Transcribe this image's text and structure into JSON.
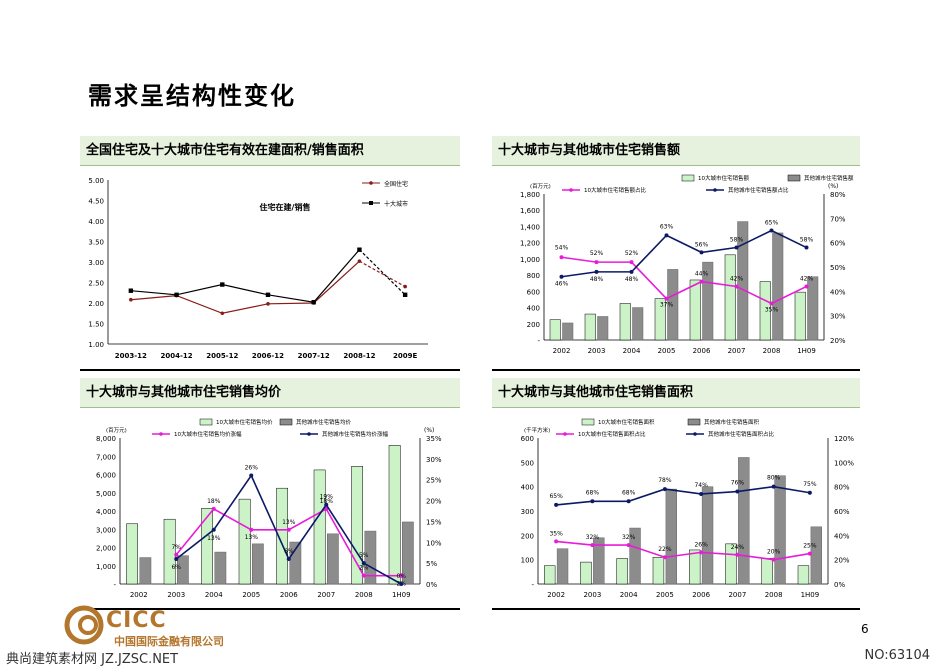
{
  "page": {
    "title": "需求呈结构性变化",
    "page_number": "6",
    "footer_left": "典尚建筑素材网 JZ.JZSC.NET",
    "footer_right": "NO:63104",
    "logo_text": "CICC",
    "logo_sub": "中国国际金融有限公司"
  },
  "colors": {
    "header_bg": "#e6f2de",
    "bar_green": "#ccf2c8",
    "bar_gray": "#8c8c8c",
    "line_magenta": "#e81bd9",
    "line_navy": "#0c1a66",
    "line_red": "#8a1b1b",
    "line_black": "#000000"
  },
  "chart_data": [
    {
      "id": "c1",
      "type": "line",
      "header": "全国住宅及十大城市住宅有效在建面积/销售面积",
      "title": "住宅在建/销售",
      "categories": [
        "2003-12",
        "2004-12",
        "2005-12",
        "2006-12",
        "2007-12",
        "2008-12",
        "2009E"
      ],
      "ylim": [
        1.0,
        5.0
      ],
      "yticks": [
        "1.00",
        "1.50",
        "2.00",
        "2.50",
        "3.00",
        "3.50",
        "4.00",
        "4.50",
        "5.00"
      ],
      "legend_position": "top-right",
      "grid": false,
      "series": [
        {
          "name": "全国住宅",
          "values": [
            2.08,
            2.18,
            1.75,
            1.98,
            2.0,
            3.02,
            2.4
          ],
          "dashed_last": true
        },
        {
          "name": "十大城市",
          "values": [
            2.3,
            2.2,
            2.45,
            2.2,
            2.02,
            3.3,
            2.2
          ],
          "dashed_last": true
        }
      ]
    },
    {
      "id": "c2",
      "type": "bar",
      "header": "十大城市与其他城市住宅销售额",
      "categories": [
        "2002",
        "2003",
        "2004",
        "2005",
        "2006",
        "2007",
        "2008",
        "1H09"
      ],
      "y_unit": "(百万元)",
      "y2_unit": "(%)",
      "ylim": [
        0,
        1800
      ],
      "yticks": [
        "-",
        "200",
        "400",
        "600",
        "800",
        "1,000",
        "1,200",
        "1,400",
        "1,600",
        "1,800"
      ],
      "y2lim": [
        20,
        80
      ],
      "y2ticks": [
        "20%",
        "30%",
        "40%",
        "50%",
        "60%",
        "70%",
        "80%"
      ],
      "legend_position": "top",
      "bars": [
        {
          "name": "10大城市住宅销售额",
          "values": [
            250,
            320,
            450,
            510,
            740,
            1050,
            720,
            590
          ]
        },
        {
          "name": "其他城市住宅销售额",
          "values": [
            210,
            290,
            400,
            870,
            960,
            1460,
            1320,
            780
          ]
        }
      ],
      "lines": [
        {
          "name": "10大城市住宅销售额占比",
          "values": [
            54,
            52,
            52,
            37,
            44,
            42,
            35,
            42
          ],
          "labels": [
            "54%",
            "52%",
            "52%",
            "37%",
            "44%",
            "42%",
            "35%",
            "42%"
          ]
        },
        {
          "name": "其他城市住宅销售额占比",
          "values": [
            46,
            48,
            48,
            63,
            56,
            58,
            65,
            58
          ],
          "labels": [
            "46%",
            "48%",
            "48%",
            "63%",
            "56%",
            "58%",
            "65%",
            "58%"
          ]
        }
      ]
    },
    {
      "id": "c3",
      "type": "bar",
      "header": "十大城市与其他城市住宅销售均价",
      "categories": [
        "2002",
        "2003",
        "2004",
        "2005",
        "2006",
        "2007",
        "2008",
        "1H09"
      ],
      "y_unit": "(百万元)",
      "y2_unit": "(%)",
      "ylim": [
        0,
        8000
      ],
      "yticks": [
        "-",
        "1,000",
        "2,000",
        "3,000",
        "4,000",
        "5,000",
        "6,000",
        "7,000",
        "8,000"
      ],
      "y2lim": [
        0,
        35
      ],
      "y2ticks": [
        "0%",
        "5%",
        "10%",
        "15%",
        "20%",
        "25%",
        "30%",
        "35%"
      ],
      "legend_position": "top",
      "bars": [
        {
          "name": "10大城市住宅销售均价",
          "values": [
            3300,
            3550,
            4150,
            4650,
            5250,
            6250,
            6450,
            7600
          ]
        },
        {
          "name": "其他城市住宅销售均价",
          "values": [
            1450,
            1550,
            1750,
            2200,
            2300,
            2750,
            2900,
            3400
          ]
        }
      ],
      "lines": [
        {
          "name": "10大城市住宅销售均价涨幅",
          "values": [
            7,
            18,
            13,
            13,
            18,
            2,
            2
          ],
          "labels": [
            "7%",
            "18%",
            "13%",
            "13%",
            "18%",
            "2%",
            "2%"
          ]
        },
        {
          "name": "其他城市住宅销售均价涨幅",
          "values": [
            6,
            13,
            26,
            6,
            19,
            5,
            0
          ],
          "labels": [
            "6%",
            "13%",
            "26%",
            "6%",
            "19%",
            "5%",
            "0%"
          ]
        }
      ]
    },
    {
      "id": "c4",
      "type": "bar",
      "header": "十大城市与其他城市住宅销售面积",
      "categories": [
        "2002",
        "2003",
        "2004",
        "2005",
        "2006",
        "2007",
        "2008",
        "1H09"
      ],
      "y_unit": "(千平方米)",
      "ylim": [
        0,
        600
      ],
      "yticks": [
        "-",
        "100",
        "200",
        "300",
        "400",
        "500",
        "600"
      ],
      "y2lim": [
        0,
        120
      ],
      "y2ticks": [
        "0%",
        "20%",
        "40%",
        "60%",
        "80%",
        "100%",
        "120%"
      ],
      "legend_position": "top",
      "bars": [
        {
          "name": "10大城市住宅销售面积",
          "values": [
            75,
            90,
            105,
            110,
            140,
            165,
            105,
            75
          ]
        },
        {
          "name": "其他城市住宅销售面积",
          "values": [
            145,
            190,
            230,
            390,
            400,
            520,
            445,
            235
          ]
        }
      ],
      "lines": [
        {
          "name": "10大城市住宅销售面积占比",
          "values": [
            35,
            32,
            32,
            22,
            26,
            24,
            20,
            25
          ],
          "labels": [
            "35%",
            "32%",
            "32%",
            "22%",
            "26%",
            "24%",
            "20%",
            "25%"
          ]
        },
        {
          "name": "其他城市住宅销售面积占比",
          "values": [
            65,
            68,
            68,
            78,
            74,
            76,
            80,
            75
          ],
          "labels": [
            "65%",
            "68%",
            "68%",
            "78%",
            "74%",
            "76%",
            "80%",
            "75%"
          ]
        }
      ]
    }
  ]
}
